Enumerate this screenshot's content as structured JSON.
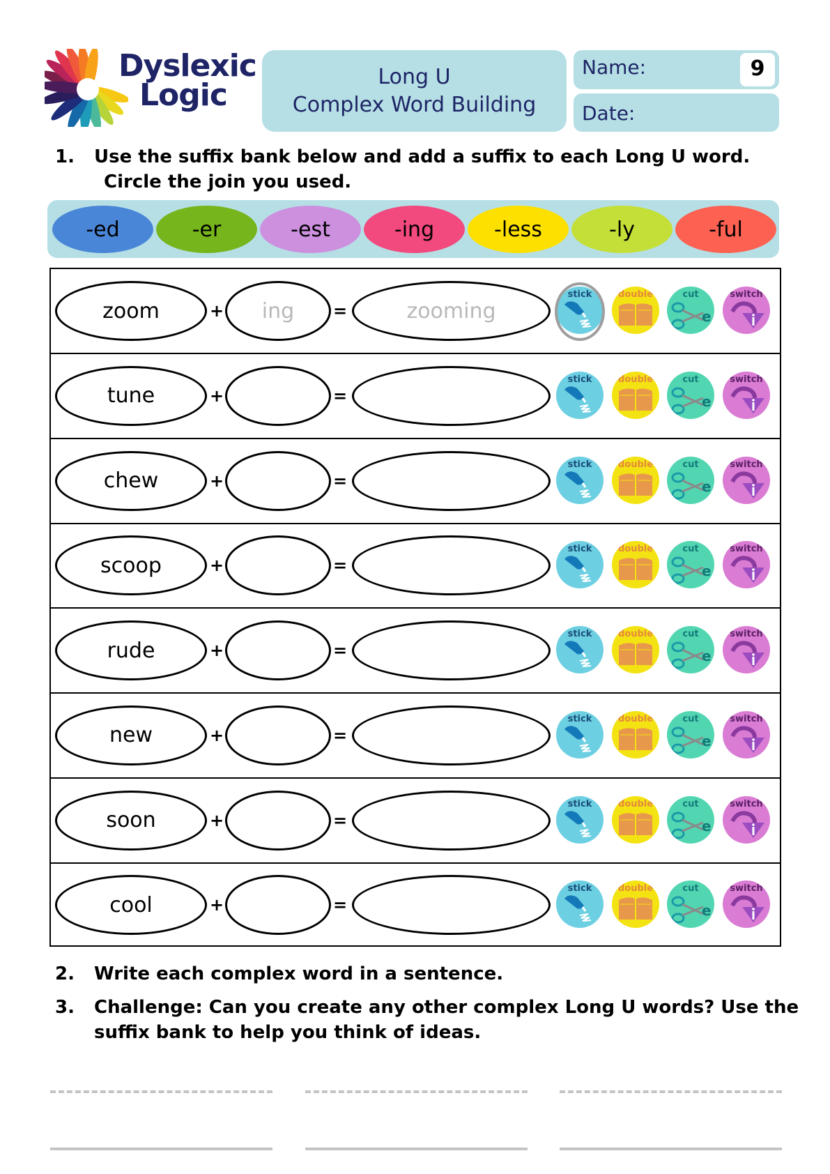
{
  "header": {
    "logo": {
      "line1": "Dyslexic",
      "line2": "Logic"
    },
    "title_line1": "Long U",
    "title_line2": "Complex Word Building",
    "name_label": "Name:",
    "date_label": "Date:",
    "sheet_number": "9"
  },
  "instructions": [
    {
      "num": "1.",
      "line1": "Use the suffix bank below and add a suffix to each Long U word.",
      "line2": "Circle the join you used."
    },
    {
      "num": "2.",
      "line1": "Write each complex word in a sentence."
    },
    {
      "num": "3.",
      "line1": "Challenge: Can you create any other complex Long U words? Use the",
      "line2": "suffix bank to help you think of ideas."
    }
  ],
  "suffix_bank": [
    {
      "label": "-ed",
      "color": "#4a86d8"
    },
    {
      "label": "-er",
      "color": "#76b51b"
    },
    {
      "label": "-est",
      "color": "#cc90de"
    },
    {
      "label": "-ing",
      "color": "#f2497e"
    },
    {
      "label": "-less",
      "color": "#fde000"
    },
    {
      "label": "-ly",
      "color": "#c4df37"
    },
    {
      "label": "-ful",
      "color": "#fc6152"
    }
  ],
  "operators": {
    "plus": "+",
    "equals": "="
  },
  "joins": {
    "stick": "stick",
    "double": "double",
    "cut": "cut",
    "switch": "switch"
  },
  "rows": [
    {
      "word": "zoom",
      "suffix": "ing",
      "result": "zooming",
      "circled_join": "stick"
    },
    {
      "word": "tune",
      "suffix": "",
      "result": ""
    },
    {
      "word": "chew",
      "suffix": "",
      "result": ""
    },
    {
      "word": "scoop",
      "suffix": "",
      "result": ""
    },
    {
      "word": "rude",
      "suffix": "",
      "result": ""
    },
    {
      "word": "new",
      "suffix": "",
      "result": ""
    },
    {
      "word": "soon",
      "suffix": "",
      "result": ""
    },
    {
      "word": "cool",
      "suffix": "",
      "result": ""
    }
  ],
  "colors": {
    "panel": "#b5dfe5",
    "brand_navy": "#1e2466",
    "hint_gray": "#b8b8b8",
    "line_gray": "#c4c4c4"
  }
}
